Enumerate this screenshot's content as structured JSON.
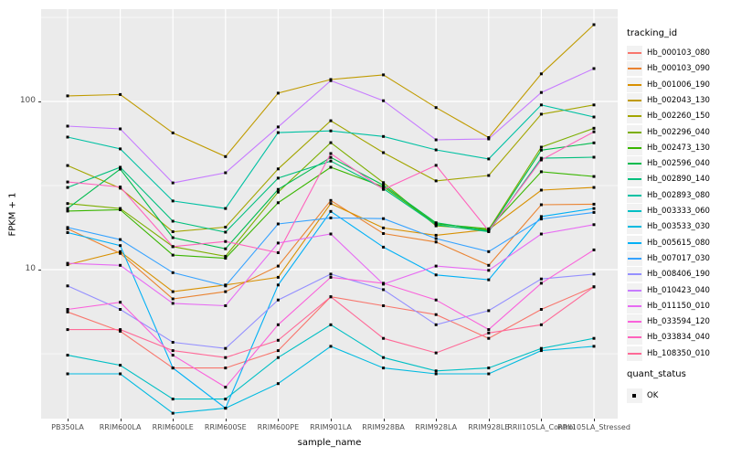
{
  "y_axis": {
    "label": "FPKM + 1",
    "ticks": [
      {
        "label": "100",
        "value": 100
      },
      {
        "label": "10",
        "value": 10
      }
    ]
  },
  "x_axis": {
    "label": "sample_name"
  },
  "legend": {
    "title": "tracking_id",
    "quant_title": "quant_status",
    "quant_item": "OK"
  },
  "colors": {
    "panel_background": "#EBEBEB",
    "gridline": "#FFFFFF",
    "point": "#000000"
  },
  "chart_data": {
    "type": "line",
    "y_scale": "log10",
    "ylim": [
      1.3,
      354
    ],
    "grid": "on",
    "legend_position": "right",
    "xlabel": "sample_name",
    "ylabel": "FPKM + 1",
    "y_major_gridlines": [
      100,
      10
    ],
    "y_minor_gridlines": [
      316,
      31.6,
      3.16
    ],
    "categories": [
      "PB350LA",
      "RRIM600LA",
      "RRIM600LE",
      "RRIM600SE",
      "RRIM600PE",
      "RRIM901LA",
      "RRIM928BA",
      "RRIM928LA",
      "RRIM928LE",
      "RRII105LA_Control",
      "RRII105LA_Stressed"
    ],
    "quant_status": "OK",
    "series": [
      {
        "name": "Hb_000103_080",
        "color": "#F8766D",
        "values": [
          5.6,
          4.3,
          2.6,
          2.6,
          3.3,
          6.9,
          6.1,
          5.4,
          3.9,
          5.8,
          7.9
        ]
      },
      {
        "name": "Hb_000103_090",
        "color": "#EA8331",
        "values": [
          17.5,
          12.5,
          6.7,
          7.4,
          10.5,
          25.8,
          16.4,
          14.6,
          10.6,
          24.3,
          24.5
        ]
      },
      {
        "name": "Hb_001006_190",
        "color": "#D89000",
        "values": [
          10.7,
          12.8,
          7.4,
          8.1,
          9.0,
          24.7,
          17.7,
          16.0,
          17.3,
          29.7,
          30.8
        ]
      },
      {
        "name": "Hb_002043_130",
        "color": "#C09B00",
        "values": [
          108,
          110,
          65,
          47,
          112,
          135,
          144,
          92,
          61,
          146,
          286
        ]
      },
      {
        "name": "Hb_002260_150",
        "color": "#A3A500",
        "values": [
          41.6,
          30.5,
          16.8,
          17.9,
          39.7,
          76.8,
          49.6,
          33.7,
          36.3,
          84,
          95.4
        ]
      },
      {
        "name": "Hb_002296_040",
        "color": "#7CAE00",
        "values": [
          24.7,
          23.1,
          13.7,
          12.0,
          28.9,
          56.9,
          32.9,
          18.2,
          17.3,
          53.5,
          69.3
        ]
      },
      {
        "name": "Hb_002473_130",
        "color": "#39B600",
        "values": [
          22.3,
          22.7,
          12.2,
          11.7,
          25.0,
          40.6,
          31.1,
          18.7,
          17.5,
          38.2,
          35.8
        ]
      },
      {
        "name": "Hb_002596_040",
        "color": "#00BB4E",
        "values": [
          23.1,
          39.6,
          15.5,
          13.3,
          30.0,
          46.5,
          31.8,
          19.0,
          17.0,
          51.3,
          56.7
        ]
      },
      {
        "name": "Hb_002890_140",
        "color": "#00BF7D",
        "values": [
          30.8,
          40.6,
          19.4,
          16.7,
          35.0,
          44.2,
          30.3,
          18.5,
          16.8,
          46.0,
          46.6
        ]
      },
      {
        "name": "Hb_002893_080",
        "color": "#00C1A3",
        "values": [
          61.4,
          52.2,
          25.6,
          23.1,
          65.3,
          66.8,
          61.9,
          51.5,
          45.5,
          95.4,
          80.8
        ]
      },
      {
        "name": "Hb_003333_060",
        "color": "#00BFC4",
        "values": [
          3.1,
          2.7,
          1.7,
          1.7,
          3.0,
          4.7,
          3.0,
          2.5,
          2.6,
          3.4,
          3.9
        ]
      },
      {
        "name": "Hb_003533_030",
        "color": "#00BAE0",
        "values": [
          2.4,
          2.4,
          1.4,
          1.5,
          2.1,
          3.5,
          2.6,
          2.4,
          2.4,
          3.3,
          3.5
        ]
      },
      {
        "name": "Hb_005615_080",
        "color": "#00B0F6",
        "values": [
          16.6,
          13.9,
          2.6,
          1.5,
          8.1,
          22.2,
          13.6,
          9.3,
          8.7,
          20.7,
          23.1
        ]
      },
      {
        "name": "Hb_007017_030",
        "color": "#35A2FF",
        "values": [
          17.8,
          15.1,
          9.6,
          8.0,
          18.7,
          20.3,
          20.1,
          15.3,
          12.8,
          20.0,
          21.9
        ]
      },
      {
        "name": "Hb_008406_190",
        "color": "#9590FF",
        "values": [
          8.0,
          5.8,
          3.7,
          3.4,
          6.6,
          9.4,
          7.6,
          4.7,
          5.7,
          8.8,
          9.4
        ]
      },
      {
        "name": "Hb_010423_040",
        "color": "#C77CFF",
        "values": [
          71.3,
          68.7,
          32.8,
          37.7,
          70.5,
          133,
          101,
          59.1,
          59.9,
          113,
          157
        ]
      },
      {
        "name": "Hb_011150_010",
        "color": "#E76BF3",
        "values": [
          10.9,
          10.6,
          6.3,
          6.1,
          14.4,
          16.3,
          8.2,
          10.5,
          9.9,
          16.3,
          18.5
        ]
      },
      {
        "name": "Hb_033594_120",
        "color": "#FA62DB",
        "values": [
          5.8,
          6.4,
          3.1,
          2.0,
          4.7,
          9.0,
          8.3,
          6.6,
          4.4,
          8.3,
          13.1
        ]
      },
      {
        "name": "Hb_033834_040",
        "color": "#FF62BC",
        "values": [
          33.2,
          31.0,
          13.7,
          14.7,
          12.6,
          49.0,
          30.0,
          41.7,
          17.0,
          44.9,
          66.0
        ]
      },
      {
        "name": "Hb_108350_010",
        "color": "#FF6A98",
        "values": [
          4.4,
          4.4,
          3.3,
          3.0,
          3.8,
          6.9,
          3.9,
          3.2,
          4.2,
          4.7,
          7.9
        ]
      }
    ]
  }
}
